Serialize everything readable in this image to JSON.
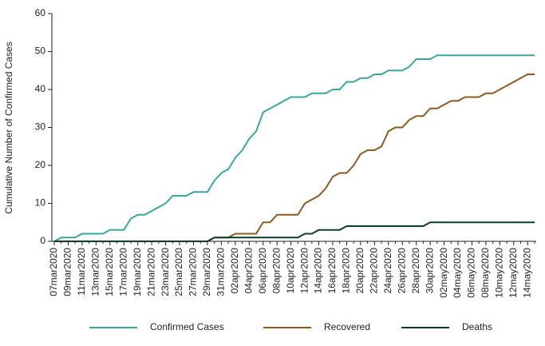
{
  "chart_data": {
    "type": "line",
    "y_label": "Cumulative Number of Confirmed Cases",
    "categories": [
      "07mar2020",
      null,
      "09mar2020",
      null,
      "11mar2020",
      null,
      "13mar2020",
      null,
      "15mar2020",
      null,
      "17mar2020",
      null,
      "19mar2020",
      null,
      "21mar2020",
      null,
      "23mar2020",
      null,
      "25mar2020",
      null,
      "27mar2020",
      null,
      "29mar2020",
      null,
      "31mar2020",
      null,
      "02apr2020",
      null,
      "04apr2020",
      null,
      "06apr2020",
      null,
      "08apr2020",
      null,
      "10apr2020",
      null,
      "12apr2020",
      null,
      "14apr2020",
      null,
      "16apr2020",
      null,
      "18apr2020",
      null,
      "20apr2020",
      null,
      "22apr2020",
      null,
      "24apr2020",
      null,
      "26apr2020",
      null,
      "28apr2020",
      null,
      "30apr2020",
      null,
      "02may2020",
      null,
      "04may2020",
      null,
      "06may2020",
      null,
      "08may2020",
      null,
      "10may2020",
      null,
      "12may2020",
      null,
      "14may2020",
      null
    ],
    "series": [
      {
        "name": "Confirmed Cases",
        "color": "#3aa6a0",
        "values": [
          0,
          1,
          1,
          1,
          2,
          2,
          2,
          2,
          3,
          3,
          3,
          6,
          7,
          7,
          8,
          9,
          10,
          12,
          12,
          12,
          13,
          13,
          13,
          16,
          18,
          19,
          22,
          24,
          27,
          29,
          34,
          35,
          36,
          37,
          38,
          38,
          38,
          39,
          39,
          39,
          40,
          40,
          42,
          42,
          43,
          43,
          44,
          44,
          45,
          45,
          45,
          46,
          48,
          48,
          48,
          49,
          49,
          49,
          49,
          49,
          49,
          49,
          49,
          49,
          49,
          49,
          49,
          49,
          49,
          49
        ]
      },
      {
        "name": "Recovered",
        "color": "#8b5a1f",
        "values": [
          0,
          0,
          0,
          0,
          0,
          0,
          0,
          0,
          0,
          0,
          0,
          0,
          0,
          0,
          0,
          0,
          0,
          0,
          0,
          0,
          0,
          0,
          0,
          1,
          1,
          1,
          2,
          2,
          2,
          2,
          5,
          5,
          7,
          7,
          7,
          7,
          10,
          11,
          12,
          14,
          17,
          18,
          18,
          20,
          23,
          24,
          24,
          25,
          29,
          30,
          30,
          32,
          33,
          33,
          35,
          35,
          36,
          37,
          37,
          38,
          38,
          38,
          39,
          39,
          40,
          41,
          42,
          43,
          44,
          44
        ]
      },
      {
        "name": "Deaths",
        "color": "#0d3b2e",
        "values": [
          0,
          0,
          0,
          0,
          0,
          0,
          0,
          0,
          0,
          0,
          0,
          0,
          0,
          0,
          0,
          0,
          0,
          0,
          0,
          0,
          0,
          0,
          0,
          1,
          1,
          1,
          1,
          1,
          1,
          1,
          1,
          1,
          1,
          1,
          1,
          1,
          2,
          2,
          3,
          3,
          3,
          3,
          4,
          4,
          4,
          4,
          4,
          4,
          4,
          4,
          4,
          4,
          4,
          4,
          5,
          5,
          5,
          5,
          5,
          5,
          5,
          5,
          5,
          5,
          5,
          5,
          5,
          5,
          5,
          5
        ]
      }
    ],
    "ylim": [
      0,
      60
    ],
    "yticks": [
      0,
      10,
      20,
      30,
      40,
      50,
      60
    ],
    "grid": false
  }
}
